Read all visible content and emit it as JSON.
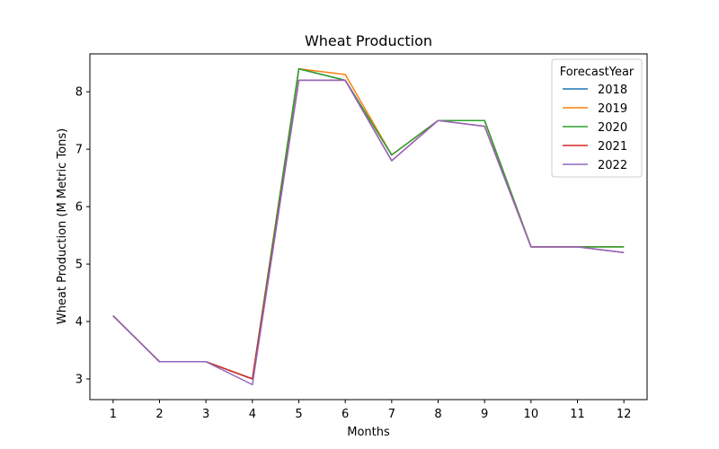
{
  "chart_data": {
    "type": "line",
    "title": "Wheat Production",
    "xlabel": "Months",
    "ylabel": "Wheat Production (M Metric Tons)",
    "x": [
      1,
      2,
      3,
      4,
      5,
      6,
      7,
      8,
      9,
      10,
      11,
      12
    ],
    "xlim": [
      0.5,
      12.5
    ],
    "ylim": [
      2.64,
      8.66
    ],
    "yticks": [
      3,
      4,
      5,
      6,
      7,
      8
    ],
    "grid": false,
    "legend": {
      "title": "ForecastYear",
      "placement": "top-right"
    },
    "series": [
      {
        "name": "2018",
        "color": "#1f77b4",
        "values": [
          4.1,
          3.3,
          3.3,
          3.0,
          8.4,
          8.2,
          6.9,
          7.5,
          7.5,
          5.3,
          5.3,
          5.3
        ]
      },
      {
        "name": "2019",
        "color": "#ff7f0e",
        "values": [
          4.1,
          3.3,
          3.3,
          3.0,
          8.4,
          8.3,
          6.9,
          7.5,
          7.5,
          5.3,
          5.3,
          5.3
        ]
      },
      {
        "name": "2020",
        "color": "#2ca02c",
        "values": [
          4.1,
          3.3,
          3.3,
          3.0,
          8.4,
          8.2,
          6.9,
          7.5,
          7.5,
          5.3,
          5.3,
          5.3
        ]
      },
      {
        "name": "2021",
        "color": "#d62728",
        "values": [
          4.1,
          3.3,
          3.3,
          3.0,
          8.2,
          8.2,
          6.8,
          7.5,
          7.4,
          5.3,
          5.3,
          5.2
        ]
      },
      {
        "name": "2022",
        "color": "#9467bd",
        "values": [
          4.1,
          3.3,
          3.3,
          2.9,
          8.2,
          8.2,
          6.8,
          7.5,
          7.4,
          5.3,
          5.3,
          5.2
        ]
      }
    ]
  }
}
